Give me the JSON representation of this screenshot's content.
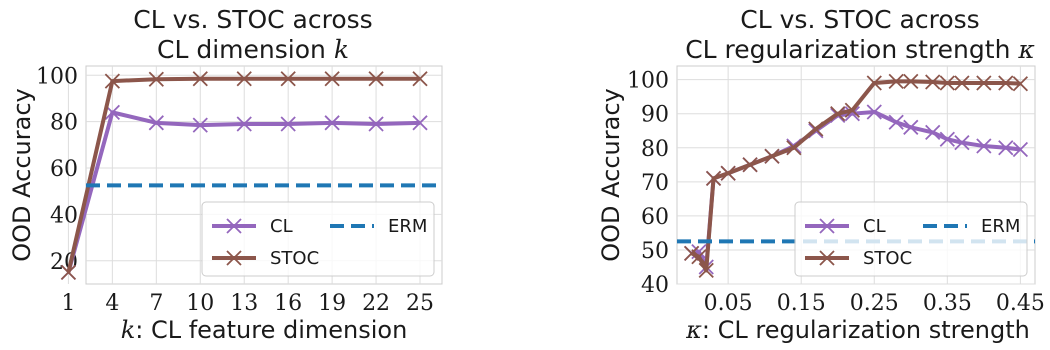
{
  "chart_data": [
    {
      "type": "line",
      "title_lines": [
        "CL vs. STOC across",
        "CL dimension"
      ],
      "title_symbol": "k",
      "xlabel_symbol": "k",
      "xlabel": ": CL feature dimension",
      "ylabel": "OOD Accuracy",
      "x_scale": "categorical",
      "x": [
        "1",
        "4",
        "7",
        "10",
        "13",
        "16",
        "19",
        "22",
        "25"
      ],
      "xlim": [
        0.4,
        8.5
      ],
      "ylim": [
        10,
        104
      ],
      "yticks": [
        20,
        40,
        60,
        80,
        100
      ],
      "grid": true,
      "legend_position": "lower-right",
      "series": [
        {
          "name": "CL",
          "color": "#9467bd",
          "marker": "x",
          "values": [
            15,
            84,
            79.5,
            78.5,
            79,
            79,
            79.5,
            79,
            79.5
          ]
        },
        {
          "name": "STOC",
          "color": "#8c564b",
          "marker": "x",
          "values": [
            15,
            97.5,
            98.3,
            98.5,
            98.5,
            98.5,
            98.5,
            98.5,
            98.5
          ]
        },
        {
          "name": "ERM",
          "color": "#1f77b4",
          "style": "dashed",
          "constant": 52.5
        }
      ]
    },
    {
      "type": "line",
      "title_lines": [
        "CL vs. STOC across",
        "CL regularization strength"
      ],
      "title_symbol": "κ",
      "xlabel_symbol": "κ",
      "xlabel": ": CL regularization strength",
      "ylabel": "OOD Accuracy",
      "x_scale": "linear",
      "xlim": [
        -0.02,
        0.47
      ],
      "xticks": [
        "0.05",
        "0.15",
        "0.25",
        "0.35",
        "0.45"
      ],
      "ylim": [
        40,
        104
      ],
      "yticks": [
        40,
        50,
        60,
        70,
        80,
        90,
        100
      ],
      "grid": true,
      "legend_position": "lower-right",
      "series": [
        {
          "name": "CL",
          "color": "#9467bd",
          "marker": "x",
          "x": [
            0,
            0.01,
            0.02,
            0.03,
            0.05,
            0.08,
            0.11,
            0.14,
            0.17,
            0.2,
            0.22,
            0.25,
            0.28,
            0.3,
            0.33,
            0.35,
            0.37,
            0.4,
            0.43,
            0.45
          ],
          "values": [
            49,
            49.5,
            45,
            71,
            72.5,
            75,
            77.5,
            80.5,
            85,
            89.5,
            90,
            90.5,
            87.5,
            86,
            84.5,
            82.5,
            81.5,
            80.5,
            80,
            79.5
          ]
        },
        {
          "name": "STOC",
          "color": "#8c564b",
          "marker": "x",
          "x": [
            0,
            0.01,
            0.02,
            0.03,
            0.05,
            0.08,
            0.11,
            0.14,
            0.17,
            0.2,
            0.22,
            0.25,
            0.28,
            0.3,
            0.33,
            0.35,
            0.37,
            0.4,
            0.43,
            0.45
          ],
          "values": [
            49,
            48,
            44,
            71,
            72.5,
            75,
            77.5,
            80,
            85.5,
            90,
            91,
            99,
            99.5,
            99.5,
            99.3,
            99,
            99,
            99,
            99,
            98.8
          ]
        },
        {
          "name": "ERM",
          "color": "#1f77b4",
          "style": "dashed",
          "constant": 52.5
        }
      ]
    }
  ]
}
